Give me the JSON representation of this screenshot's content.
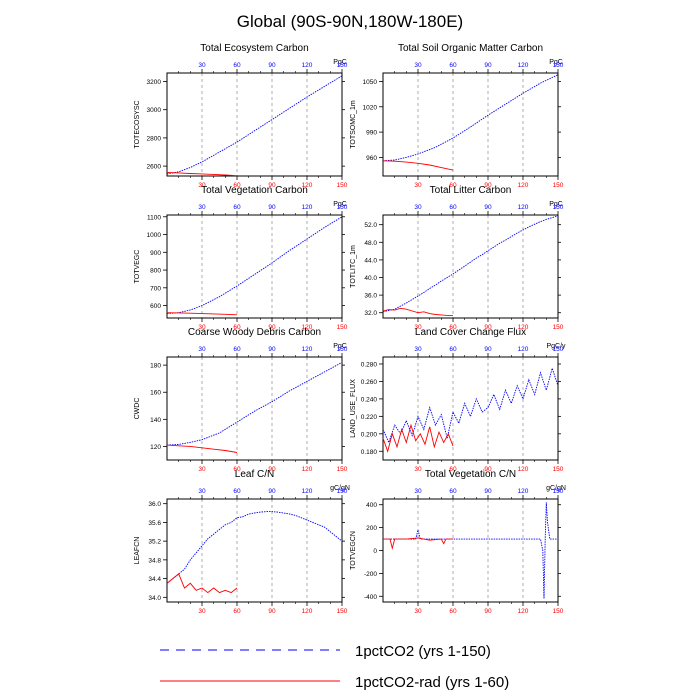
{
  "figure": {
    "title": "Global (90S-90N,180W-180E)",
    "colors": {
      "series1": "#0000ff",
      "series2": "#ff0000",
      "grid": "#999999",
      "axis": "#000000"
    },
    "top_axis_ticks": [
      "30",
      "60",
      "90",
      "120",
      "150"
    ],
    "bottom_axis_ticks": [
      "30",
      "60",
      "90",
      "120",
      "150"
    ],
    "legend": [
      {
        "label": "1pctCO2 (yrs 1-150)",
        "color": "#0000ff",
        "style": "dashed"
      },
      {
        "label": "1pctCO2-rad (yrs 1-60)",
        "color": "#ff0000",
        "style": "solid"
      }
    ]
  },
  "chart_data": [
    {
      "type": "line",
      "title": "Total Ecosystem Carbon",
      "ylabel": "TOTECOSYSC",
      "units": "PgC",
      "xlim": [
        0,
        150
      ],
      "ylim": [
        2530,
        3260
      ],
      "yticks": [
        "3200",
        "3000",
        "2800",
        "2600"
      ],
      "series": [
        {
          "color": "#0000ff",
          "x": [
            0,
            10,
            20,
            30,
            45,
            60,
            75,
            90,
            105,
            120,
            135,
            150
          ],
          "y": [
            2545,
            2560,
            2590,
            2630,
            2700,
            2770,
            2850,
            2930,
            3010,
            3090,
            3165,
            3240
          ]
        },
        {
          "color": "#ff0000",
          "x": [
            0,
            10,
            20,
            30,
            40,
            50,
            60
          ],
          "y": [
            2555,
            2552,
            2548,
            2545,
            2541,
            2537,
            2532
          ]
        }
      ]
    },
    {
      "type": "line",
      "title": "Total Soil Organic Matter Carbon",
      "ylabel": "TOTSOMC_1m",
      "units": "PgC",
      "xlim": [
        0,
        150
      ],
      "ylim": [
        938,
        1060
      ],
      "yticks": [
        "1050",
        "1020",
        "990",
        "960"
      ],
      "series": [
        {
          "color": "#0000ff",
          "x": [
            0,
            10,
            20,
            30,
            45,
            60,
            75,
            90,
            105,
            120,
            135,
            150
          ],
          "y": [
            956,
            957,
            960,
            964,
            972,
            983,
            996,
            1010,
            1023,
            1036,
            1048,
            1058
          ]
        },
        {
          "color": "#ff0000",
          "x": [
            0,
            10,
            20,
            30,
            40,
            50,
            60
          ],
          "y": [
            956,
            955.5,
            954.5,
            953,
            951,
            948,
            945
          ]
        }
      ]
    },
    {
      "type": "line",
      "title": "Total Vegetation Carbon",
      "ylabel": "TOTVEGC",
      "units": "PgC",
      "xlim": [
        0,
        150
      ],
      "ylim": [
        530,
        1110
      ],
      "yticks": [
        "1100",
        "1000",
        "900",
        "800",
        "700",
        "600"
      ],
      "series": [
        {
          "color": "#0000ff",
          "x": [
            0,
            10,
            20,
            30,
            45,
            60,
            75,
            90,
            105,
            120,
            135,
            150
          ],
          "y": [
            555,
            560,
            575,
            600,
            650,
            710,
            775,
            840,
            910,
            975,
            1040,
            1100
          ]
        },
        {
          "color": "#ff0000",
          "x": [
            0,
            10,
            20,
            30,
            40,
            50,
            60
          ],
          "y": [
            560,
            559,
            557,
            555,
            553,
            551,
            548
          ]
        }
      ]
    },
    {
      "type": "line",
      "title": "Total Litter Carbon",
      "ylabel": "TOTLITC_1m",
      "units": "PgC",
      "xlim": [
        0,
        150
      ],
      "ylim": [
        30.8,
        54.2
      ],
      "yticks": [
        "52.0",
        "48.0",
        "44.0",
        "40.0",
        "36.0",
        "32.0"
      ],
      "series": [
        {
          "color": "#0000ff",
          "x": [
            0,
            5,
            10,
            15,
            20,
            25,
            30,
            35,
            40,
            45,
            50,
            55,
            60,
            65,
            70,
            75,
            80,
            85,
            90,
            95,
            100,
            105,
            110,
            115,
            120,
            125,
            130,
            135,
            140,
            145,
            150
          ],
          "y": [
            32.2,
            32.5,
            32.8,
            33.5,
            34.2,
            35.0,
            35.8,
            36.6,
            37.5,
            38.3,
            39.2,
            40.0,
            40.8,
            41.7,
            42.6,
            43.5,
            44.4,
            45.2,
            46.1,
            46.9,
            47.8,
            48.5,
            49.3,
            50.1,
            50.8,
            51.5,
            52.1,
            52.7,
            53.2,
            53.6,
            54.0
          ]
        },
        {
          "color": "#ff0000",
          "x": [
            0,
            5,
            10,
            15,
            20,
            25,
            30,
            35,
            40,
            45,
            50,
            55,
            60
          ],
          "y": [
            32.4,
            32.7,
            32.6,
            33.0,
            32.8,
            32.4,
            32.0,
            32.2,
            31.8,
            31.6,
            31.5,
            31.4,
            31.4
          ]
        }
      ]
    },
    {
      "type": "line",
      "title": "Coarse Woody Debris Carbon",
      "ylabel": "CWDC",
      "units": "PgC",
      "xlim": [
        0,
        150
      ],
      "ylim": [
        110,
        186
      ],
      "yticks": [
        "180",
        "160",
        "140",
        "120"
      ],
      "series": [
        {
          "color": "#0000ff",
          "x": [
            0,
            10,
            20,
            30,
            45,
            60,
            75,
            90,
            105,
            120,
            135,
            150
          ],
          "y": [
            121,
            121.5,
            123,
            125,
            130,
            138,
            146,
            153,
            161,
            168,
            175,
            182
          ]
        },
        {
          "color": "#ff0000",
          "x": [
            0,
            10,
            20,
            30,
            40,
            50,
            60
          ],
          "y": [
            121,
            120.5,
            120,
            119,
            118,
            117,
            115.5
          ]
        }
      ]
    },
    {
      "type": "line",
      "title": "Land Cover Change Flux",
      "ylabel": "LAND_USE_FLUX",
      "units": "PgC/y",
      "xlim": [
        0,
        150
      ],
      "ylim": [
        0.17,
        0.288
      ],
      "yticks": [
        "0.280",
        "0.260",
        "0.240",
        "0.220",
        "0.200",
        "0.180"
      ],
      "series": [
        {
          "color": "#0000ff",
          "x": [
            0,
            5,
            10,
            15,
            20,
            25,
            30,
            35,
            40,
            45,
            50,
            55,
            60,
            65,
            70,
            75,
            80,
            85,
            90,
            95,
            100,
            105,
            110,
            115,
            120,
            125,
            130,
            135,
            140,
            145,
            150
          ],
          "y": [
            0.205,
            0.19,
            0.21,
            0.2,
            0.215,
            0.198,
            0.22,
            0.205,
            0.23,
            0.21,
            0.222,
            0.195,
            0.225,
            0.212,
            0.235,
            0.22,
            0.24,
            0.225,
            0.23,
            0.245,
            0.228,
            0.25,
            0.235,
            0.255,
            0.24,
            0.262,
            0.245,
            0.27,
            0.25,
            0.275,
            0.255
          ]
        },
        {
          "color": "#ff0000",
          "x": [
            0,
            4,
            8,
            12,
            16,
            20,
            24,
            28,
            32,
            36,
            40,
            44,
            48,
            52,
            56,
            60
          ],
          "y": [
            0.195,
            0.18,
            0.2,
            0.185,
            0.205,
            0.19,
            0.21,
            0.192,
            0.2,
            0.188,
            0.208,
            0.185,
            0.202,
            0.19,
            0.2,
            0.186
          ]
        }
      ]
    },
    {
      "type": "line",
      "title": "Leaf C/N",
      "ylabel": "LEAFCN",
      "units": "gC/gN",
      "xlim": [
        0,
        150
      ],
      "ylim": [
        33.9,
        36.1
      ],
      "yticks": [
        "36.0",
        "35.6",
        "35.2",
        "34.8",
        "34.4",
        "34.0"
      ],
      "series": [
        {
          "color": "#0000ff",
          "x": [
            0,
            5,
            10,
            15,
            20,
            25,
            30,
            35,
            40,
            45,
            50,
            55,
            60,
            65,
            70,
            75,
            80,
            85,
            90,
            95,
            100,
            105,
            110,
            115,
            120,
            125,
            130,
            135,
            140,
            145,
            150
          ],
          "y": [
            34.3,
            34.4,
            34.5,
            34.6,
            34.8,
            34.95,
            35.1,
            35.25,
            35.35,
            35.45,
            35.55,
            35.6,
            35.7,
            35.72,
            35.78,
            35.8,
            35.82,
            35.83,
            35.83,
            35.82,
            35.8,
            35.78,
            35.75,
            35.7,
            35.65,
            35.6,
            35.55,
            35.5,
            35.4,
            35.3,
            35.2
          ]
        },
        {
          "color": "#ff0000",
          "x": [
            0,
            5,
            10,
            15,
            20,
            25,
            30,
            35,
            40,
            45,
            50,
            55,
            60
          ],
          "y": [
            34.3,
            34.4,
            34.5,
            34.2,
            34.3,
            34.15,
            34.2,
            34.1,
            34.2,
            34.1,
            34.15,
            34.1,
            34.2
          ]
        }
      ]
    },
    {
      "type": "line",
      "title": "Total Vegetation C/N",
      "ylabel": "TOTVEGCN",
      "units": "gC/gN",
      "xlim": [
        0,
        150
      ],
      "ylim": [
        -450,
        450
      ],
      "yticks": [
        "400",
        "200",
        "0",
        "-200",
        "-400"
      ],
      "series": [
        {
          "color": "#0000ff",
          "x": [
            0,
            10,
            20,
            28,
            30,
            32,
            40,
            50,
            60,
            70,
            80,
            90,
            100,
            110,
            120,
            130,
            135,
            137,
            138,
            139,
            140,
            141,
            143,
            145,
            150
          ],
          "y": [
            100,
            100,
            100,
            100,
            180,
            100,
            100,
            100,
            100,
            100,
            100,
            100,
            100,
            100,
            100,
            100,
            100,
            0,
            -420,
            100,
            420,
            250,
            100,
            100,
            100
          ]
        },
        {
          "color": "#ff0000",
          "x": [
            0,
            6,
            8,
            10,
            20,
            30,
            40,
            50,
            52,
            54,
            60
          ],
          "y": [
            100,
            100,
            20,
            100,
            100,
            110,
            90,
            100,
            60,
            100,
            100
          ]
        }
      ]
    }
  ]
}
